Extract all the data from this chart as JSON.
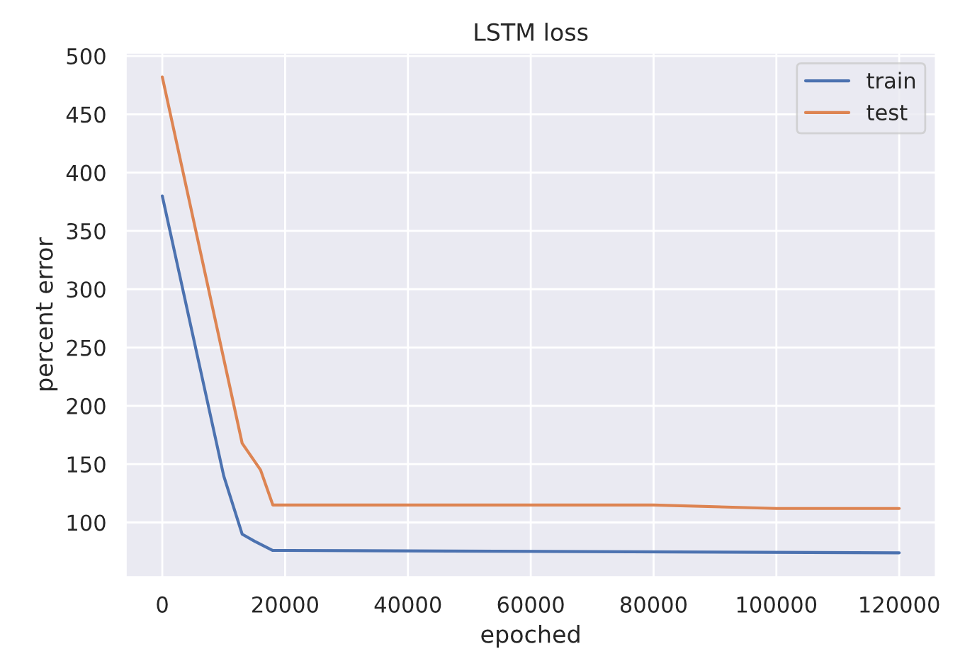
{
  "chart_data": {
    "type": "line",
    "title": "LSTM loss",
    "xlabel": "epoched",
    "ylabel": "percent error",
    "xlim": [
      -6000,
      126000
    ],
    "xticks": [
      0,
      20000,
      40000,
      60000,
      80000,
      100000,
      120000
    ],
    "ylim": [
      53,
      503
    ],
    "yticks": [
      100,
      150,
      200,
      250,
      300,
      350,
      400,
      450,
      500
    ],
    "grid": true,
    "legend": "top right",
    "series": [
      {
        "name": "train",
        "color": "#4c72b0",
        "x": [
          0,
          10000,
          13000,
          15000,
          18000,
          20000,
          120000
        ],
        "values": [
          380,
          140,
          90,
          84,
          76,
          76,
          74
        ]
      },
      {
        "name": "test",
        "color": "#dd8452",
        "x": [
          0,
          13000,
          16000,
          18000,
          80000,
          100000,
          120000
        ],
        "values": [
          482,
          168,
          145,
          115,
          115,
          112,
          112
        ]
      }
    ]
  }
}
